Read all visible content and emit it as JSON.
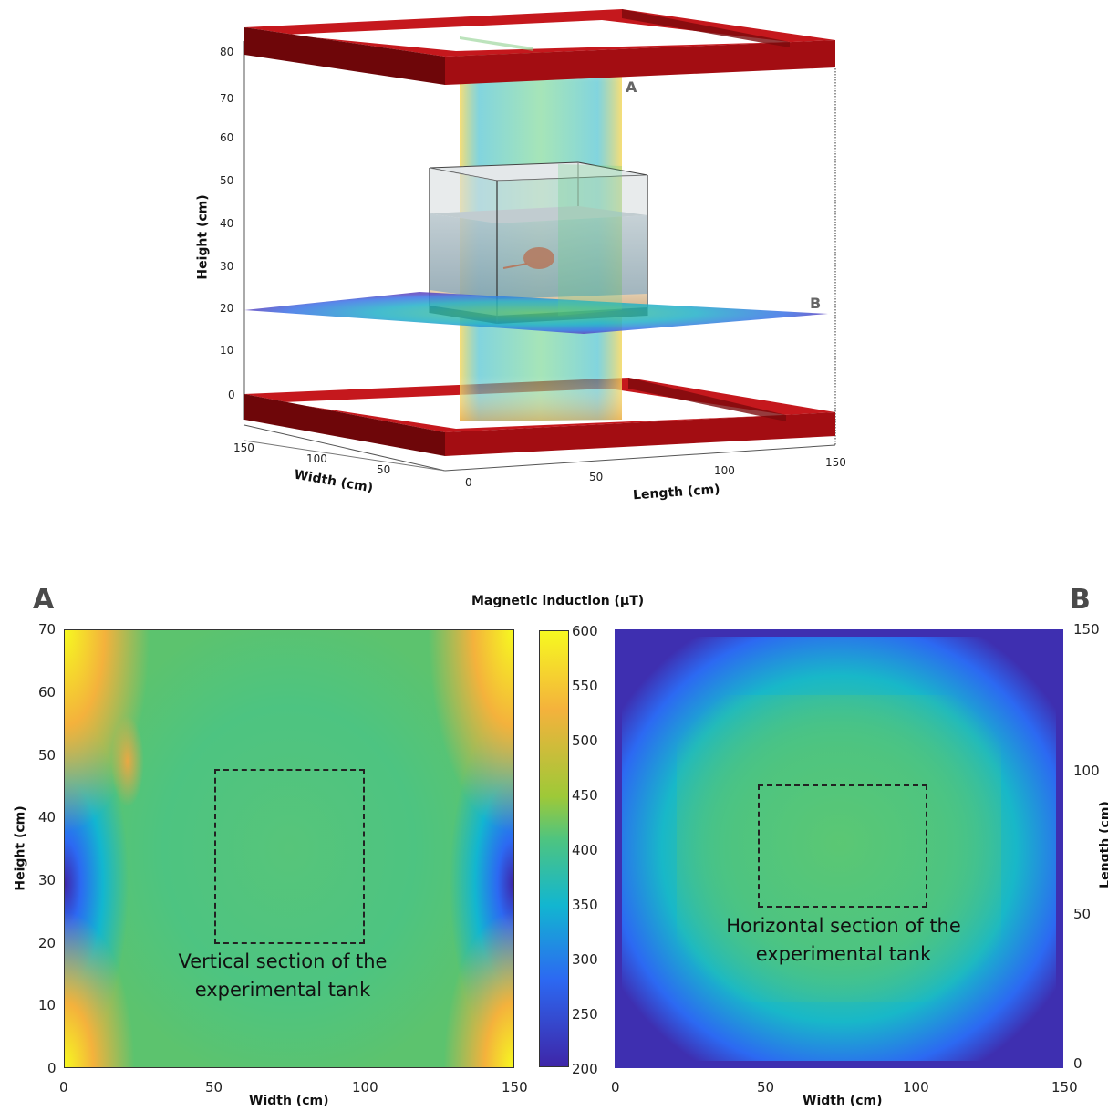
{
  "colors": {
    "frame": "#a30d12",
    "frame_dark": "#6e0609",
    "frame_top_face": "#b51418",
    "colormap": [
      "#3e26a8",
      "#2c69f2",
      "#12b6d0",
      "#4dc481",
      "#9ec938",
      "#f4b23c",
      "#f6f920"
    ],
    "dashed_box": "#222222",
    "panel_letter": "#4a4a4a"
  },
  "diagram3d": {
    "height_axis": {
      "label": "Height (cm)",
      "ticks": [
        "80",
        "70",
        "60",
        "50",
        "40",
        "30",
        "20",
        "10",
        "0"
      ]
    },
    "width_axis": {
      "label": "Width (cm)",
      "ticks": [
        "150",
        "100",
        "50"
      ]
    },
    "length_axis": {
      "label": "Length (cm)",
      "ticks": [
        "0",
        "50",
        "100",
        "150"
      ]
    },
    "plane_labels": {
      "a": "A",
      "b": "B"
    }
  },
  "chart_data": [
    {
      "type": "heatmap",
      "panel": "A",
      "annotation": "Vertical section of the experimental tank",
      "annotation_lines": [
        "Vertical section of the",
        "experimental tank"
      ],
      "xlabel": "Width (cm)",
      "ylabel": "Height (cm)",
      "xlim": [
        0,
        150
      ],
      "ylim": [
        0,
        70
      ],
      "xticks": [
        "0",
        "50",
        "100",
        "150"
      ],
      "yticks": [
        "0",
        "10",
        "20",
        "30",
        "40",
        "50",
        "60",
        "70"
      ],
      "dashed_box": {
        "x": [
          50,
          100
        ],
        "y": [
          20,
          48
        ]
      },
      "z_description": "Magnetic induction (µT)",
      "z_range": [
        200,
        600
      ],
      "features": [
        {
          "region": "corners (top-left, top-right, bottom-left, bottom-right)",
          "value": 600
        },
        {
          "region": "left and right edges at mid-height (~30 cm)",
          "value": 250
        },
        {
          "region": "center",
          "value": 450
        },
        {
          "region": "local high near x=20, y=40",
          "value": 520
        }
      ]
    },
    {
      "type": "heatmap",
      "panel": "B",
      "annotation": "Horizontal section of the experimental tank",
      "annotation_lines": [
        "Horizontal section of the",
        "experimental tank"
      ],
      "xlabel": "Width (cm)",
      "ylabel": "Length (cm)",
      "xlim": [
        0,
        150
      ],
      "ylim": [
        0,
        150
      ],
      "xticks": [
        "0",
        "50",
        "100",
        "150"
      ],
      "yticks": [
        "0",
        "50",
        "100",
        "150"
      ],
      "dashed_box": {
        "x": [
          50,
          105
        ],
        "y": [
          53,
          93
        ]
      },
      "z_description": "Magnetic induction (µT)",
      "z_range": [
        200,
        600
      ],
      "features": [
        {
          "region": "outer border",
          "value": 210
        },
        {
          "region": "center",
          "value": 450
        }
      ]
    }
  ],
  "colorbar": {
    "title": "Magnetic induction (µT)",
    "min": 200,
    "max": 600,
    "ticks": [
      "600",
      "550",
      "500",
      "450",
      "400",
      "350",
      "300",
      "250",
      "200"
    ]
  },
  "panel_letters": {
    "a": "A",
    "b": "B"
  }
}
